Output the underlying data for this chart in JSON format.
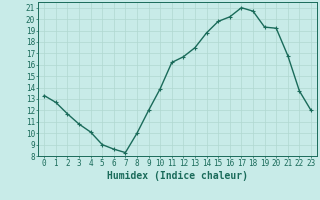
{
  "x": [
    0,
    1,
    2,
    3,
    4,
    5,
    6,
    7,
    8,
    9,
    10,
    11,
    12,
    13,
    14,
    15,
    16,
    17,
    18,
    19,
    20,
    21,
    22,
    23
  ],
  "y": [
    13.3,
    12.7,
    11.7,
    10.8,
    10.1,
    9.0,
    8.6,
    8.3,
    10.0,
    12.0,
    13.9,
    16.2,
    16.7,
    17.5,
    18.8,
    19.8,
    20.2,
    21.0,
    20.7,
    19.3,
    19.2,
    16.8,
    13.7,
    12.0
  ],
  "bg_color": "#c8ebe8",
  "line_color": "#1a6b5a",
  "grid_color": "#b0d8d0",
  "xlabel": "Humidex (Indice chaleur)",
  "ylim": [
    8,
    21.5
  ],
  "xlim": [
    -0.5,
    23.5
  ],
  "yticks": [
    8,
    9,
    10,
    11,
    12,
    13,
    14,
    15,
    16,
    17,
    18,
    19,
    20,
    21
  ],
  "xticks": [
    0,
    1,
    2,
    3,
    4,
    5,
    6,
    7,
    8,
    9,
    10,
    11,
    12,
    13,
    14,
    15,
    16,
    17,
    18,
    19,
    20,
    21,
    22,
    23
  ],
  "tick_fontsize": 5.5,
  "label_fontsize": 7,
  "line_width": 1.0,
  "marker_size": 2.5
}
